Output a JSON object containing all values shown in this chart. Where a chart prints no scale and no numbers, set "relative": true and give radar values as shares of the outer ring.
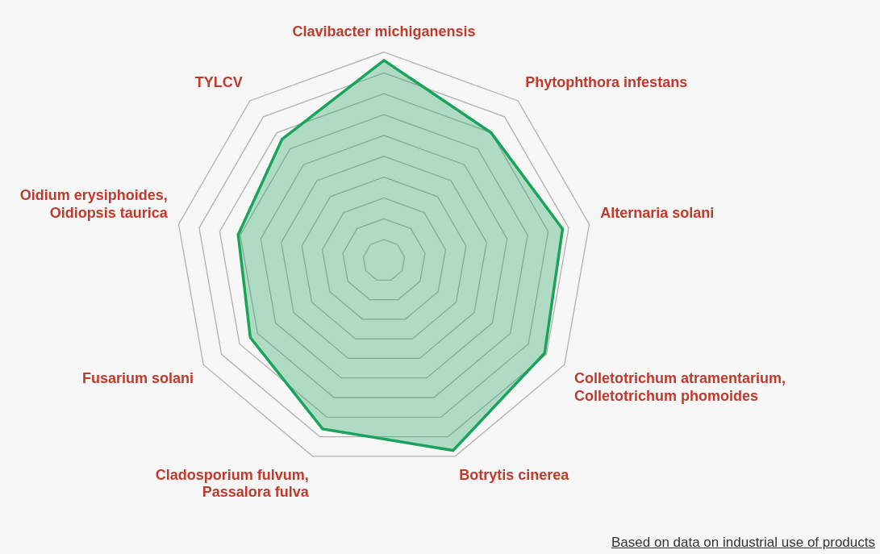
{
  "chart_data": {
    "type": "radar",
    "relative": true,
    "categories": [
      "Clavibacter michiganensis",
      "Phytophthora infestans",
      "Alternaria solani",
      "Colletotrichum atramentarium, Colletotrichum phomoides",
      "Botrytis cinerea",
      "Cladosporium fulvum, Passalora fulva",
      "Fusarium solani",
      "Oidium erysiphoides, Oidiopsis taurica",
      "TYLCV"
    ],
    "series": [
      {
        "color": "#1aa35a",
        "values": [
          0.96,
          0.8,
          0.87,
          0.89,
          0.97,
          0.86,
          0.74,
          0.71,
          0.76
        ]
      }
    ],
    "legend": false,
    "annotations": [
      "Based on data on industrial use of products"
    ]
  }
}
